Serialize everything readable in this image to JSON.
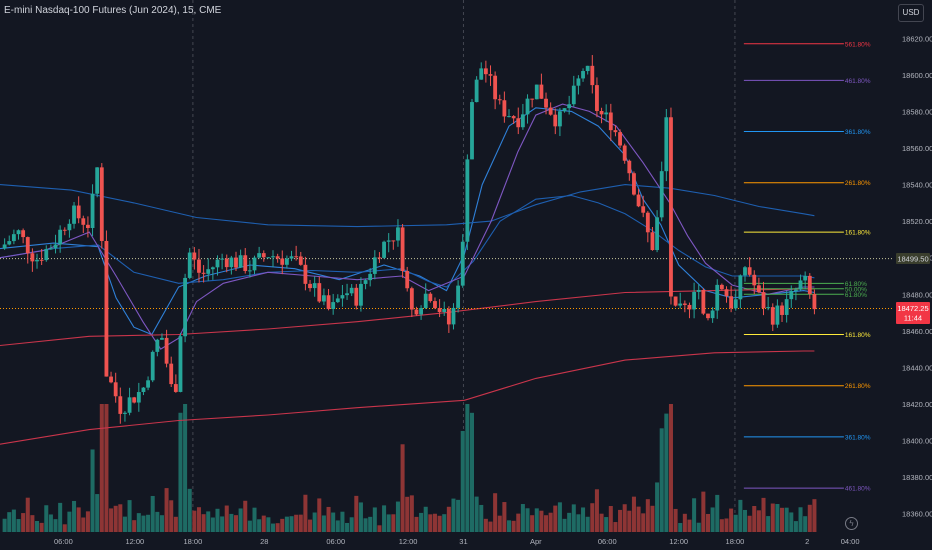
{
  "header": {
    "title": "E-mini Nasdaq-100 Futures (Jun 2024), 15, CME"
  },
  "toolbar": {
    "currency": "USD"
  },
  "badges": {
    "price": "18472.25",
    "countdown": "11:44",
    "level": "18499.50"
  },
  "icons": {
    "settings": "lightning-icon"
  },
  "colors": {
    "background": "#131722",
    "bull": "#26a69a",
    "bear": "#ef5350",
    "vol_bull": "#1e6b64",
    "vol_bear": "#8e3535",
    "ma_blue_light": "#2f80d8",
    "ma_blue_dark": "#1e5fb0",
    "ma_purple": "#7e57c2",
    "ma_red": "#c9354b",
    "fib_561": "#f23645",
    "fib_461": "#7e57c2",
    "fib_361": "#2196f3",
    "fib_261": "#ff9800",
    "fib_161": "#ffeb3b",
    "fib_618": "#4caf50",
    "level_line": "#c9c99d"
  },
  "chart_data": {
    "type": "candlestick",
    "title": "E-mini Nasdaq-100 Futures (Jun 2024), 15, CME",
    "y_range": [
      18350,
      18630
    ],
    "y_ticks": [
      18620,
      18600,
      18580,
      18560,
      18540,
      18520,
      18500,
      18480,
      18460,
      18440,
      18420,
      18400,
      18380,
      18360
    ],
    "x_ticks": [
      {
        "label": "06:00",
        "t": 0.071
      },
      {
        "label": "12:00",
        "t": 0.151
      },
      {
        "label": "18:00",
        "t": 0.216
      },
      {
        "label": "28",
        "t": 0.296
      },
      {
        "label": "06:00",
        "t": 0.376
      },
      {
        "label": "12:00",
        "t": 0.457
      },
      {
        "label": "31",
        "t": 0.519
      },
      {
        "label": "Apr",
        "t": 0.6
      },
      {
        "label": "06:00",
        "t": 0.68
      },
      {
        "label": "12:00",
        "t": 0.76
      },
      {
        "label": "18:00",
        "t": 0.823
      },
      {
        "label": "2",
        "t": 0.904
      },
      {
        "label": "04:00",
        "t": 0.952
      }
    ],
    "session_lines": [
      0.216,
      0.519,
      0.823
    ],
    "price_anchors": [
      [
        0.0,
        18505
      ],
      [
        0.02,
        18514
      ],
      [
        0.04,
        18499
      ],
      [
        0.06,
        18508
      ],
      [
        0.08,
        18525
      ],
      [
        0.1,
        18518
      ],
      [
        0.112,
        18560
      ],
      [
        0.117,
        18440
      ],
      [
        0.135,
        18418
      ],
      [
        0.16,
        18428
      ],
      [
        0.18,
        18460
      ],
      [
        0.195,
        18420
      ],
      [
        0.21,
        18505
      ],
      [
        0.225,
        18490
      ],
      [
        0.25,
        18500
      ],
      [
        0.28,
        18495
      ],
      [
        0.3,
        18502
      ],
      [
        0.33,
        18498
      ],
      [
        0.355,
        18480
      ],
      [
        0.37,
        18470
      ],
      [
        0.385,
        18482
      ],
      [
        0.4,
        18478
      ],
      [
        0.425,
        18505
      ],
      [
        0.445,
        18515
      ],
      [
        0.46,
        18470
      ],
      [
        0.48,
        18482
      ],
      [
        0.505,
        18462
      ],
      [
        0.52,
        18512
      ],
      [
        0.525,
        18580
      ],
      [
        0.54,
        18606
      ],
      [
        0.56,
        18582
      ],
      [
        0.58,
        18576
      ],
      [
        0.6,
        18594
      ],
      [
        0.625,
        18574
      ],
      [
        0.64,
        18586
      ],
      [
        0.655,
        18606
      ],
      [
        0.67,
        18579
      ],
      [
        0.685,
        18574
      ],
      [
        0.7,
        18556
      ],
      [
        0.715,
        18530
      ],
      [
        0.73,
        18505
      ],
      [
        0.74,
        18532
      ],
      [
        0.745,
        18598
      ],
      [
        0.752,
        18468
      ],
      [
        0.77,
        18472
      ],
      [
        0.78,
        18490
      ],
      [
        0.79,
        18460
      ],
      [
        0.805,
        18488
      ],
      [
        0.822,
        18472
      ],
      [
        0.835,
        18497
      ],
      [
        0.85,
        18478
      ],
      [
        0.865,
        18468
      ],
      [
        0.88,
        18474
      ],
      [
        0.9,
        18488
      ],
      [
        0.912,
        18472
      ]
    ],
    "moving_averages": [
      {
        "color": "ma_blue_light",
        "pts": [
          [
            0.0,
            18505
          ],
          [
            0.06,
            18508
          ],
          [
            0.11,
            18506
          ],
          [
            0.13,
            18478
          ],
          [
            0.15,
            18462
          ],
          [
            0.17,
            18458
          ],
          [
            0.2,
            18484
          ],
          [
            0.23,
            18490
          ],
          [
            0.28,
            18496
          ],
          [
            0.33,
            18494
          ],
          [
            0.38,
            18488
          ],
          [
            0.43,
            18496
          ],
          [
            0.47,
            18490
          ],
          [
            0.5,
            18482
          ],
          [
            0.52,
            18502
          ],
          [
            0.54,
            18540
          ],
          [
            0.57,
            18572
          ],
          [
            0.6,
            18582
          ],
          [
            0.64,
            18580
          ],
          [
            0.67,
            18572
          ],
          [
            0.7,
            18556
          ],
          [
            0.72,
            18532
          ],
          [
            0.74,
            18518
          ],
          [
            0.76,
            18496
          ],
          [
            0.79,
            18482
          ],
          [
            0.82,
            18478
          ],
          [
            0.86,
            18480
          ],
          [
            0.9,
            18482
          ],
          [
            0.912,
            18481
          ]
        ]
      },
      {
        "color": "ma_blue_dark",
        "pts": [
          [
            0.0,
            18500
          ],
          [
            0.06,
            18505
          ],
          [
            0.11,
            18507
          ],
          [
            0.15,
            18492
          ],
          [
            0.2,
            18486
          ],
          [
            0.25,
            18488
          ],
          [
            0.3,
            18492
          ],
          [
            0.35,
            18493
          ],
          [
            0.4,
            18492
          ],
          [
            0.45,
            18494
          ],
          [
            0.48,
            18487
          ],
          [
            0.5,
            18484
          ],
          [
            0.53,
            18498
          ],
          [
            0.56,
            18520
          ],
          [
            0.6,
            18532
          ],
          [
            0.64,
            18534
          ],
          [
            0.67,
            18530
          ],
          [
            0.7,
            18524
          ],
          [
            0.73,
            18515
          ],
          [
            0.76,
            18504
          ],
          [
            0.79,
            18495
          ],
          [
            0.82,
            18490
          ],
          [
            0.86,
            18490
          ],
          [
            0.9,
            18490
          ],
          [
            0.912,
            18489
          ]
        ]
      },
      {
        "color": "ma_blue_dark",
        "pts": [
          [
            0.0,
            18540
          ],
          [
            0.08,
            18537
          ],
          [
            0.15,
            18530
          ],
          [
            0.22,
            18522
          ],
          [
            0.3,
            18518
          ],
          [
            0.4,
            18517
          ],
          [
            0.5,
            18518
          ],
          [
            0.55,
            18520
          ],
          [
            0.6,
            18529
          ],
          [
            0.65,
            18536
          ],
          [
            0.7,
            18540
          ],
          [
            0.75,
            18538
          ],
          [
            0.8,
            18534
          ],
          [
            0.85,
            18528
          ],
          [
            0.9,
            18524
          ],
          [
            0.912,
            18523
          ]
        ]
      },
      {
        "color": "ma_purple",
        "pts": [
          [
            0.0,
            18500
          ],
          [
            0.05,
            18504
          ],
          [
            0.1,
            18514
          ],
          [
            0.13,
            18490
          ],
          [
            0.16,
            18465
          ],
          [
            0.18,
            18450
          ],
          [
            0.2,
            18456
          ],
          [
            0.22,
            18476
          ],
          [
            0.25,
            18486
          ],
          [
            0.3,
            18492
          ],
          [
            0.35,
            18490
          ],
          [
            0.4,
            18488
          ],
          [
            0.45,
            18490
          ],
          [
            0.48,
            18482
          ],
          [
            0.52,
            18490
          ],
          [
            0.55,
            18520
          ],
          [
            0.58,
            18558
          ],
          [
            0.6,
            18578
          ],
          [
            0.63,
            18584
          ],
          [
            0.66,
            18580
          ],
          [
            0.69,
            18572
          ],
          [
            0.72,
            18552
          ],
          [
            0.75,
            18530
          ],
          [
            0.77,
            18512
          ],
          [
            0.79,
            18497
          ],
          [
            0.82,
            18485
          ],
          [
            0.86,
            18480
          ],
          [
            0.9,
            18484
          ],
          [
            0.912,
            18484
          ]
        ]
      },
      {
        "color": "ma_red",
        "pts": [
          [
            0.0,
            18452
          ],
          [
            0.1,
            18457
          ],
          [
            0.2,
            18458
          ],
          [
            0.3,
            18461
          ],
          [
            0.4,
            18465
          ],
          [
            0.5,
            18470
          ],
          [
            0.6,
            18476
          ],
          [
            0.7,
            18481
          ],
          [
            0.8,
            18482
          ],
          [
            0.9,
            18483
          ],
          [
            0.912,
            18483
          ]
        ]
      },
      {
        "color": "ma_red",
        "pts": [
          [
            0.0,
            18398
          ],
          [
            0.1,
            18406
          ],
          [
            0.2,
            18411
          ],
          [
            0.3,
            18414
          ],
          [
            0.4,
            18418
          ],
          [
            0.52,
            18422
          ],
          [
            0.6,
            18434
          ],
          [
            0.7,
            18444
          ],
          [
            0.8,
            18448
          ],
          [
            0.9,
            18449
          ],
          [
            0.912,
            18449
          ]
        ]
      }
    ],
    "fib_levels": [
      {
        "label": "561.80%",
        "value": 18617,
        "color": "fib_561"
      },
      {
        "label": "461.80%",
        "value": 18597,
        "color": "fib_461"
      },
      {
        "label": "361.80%",
        "value": 18569,
        "color": "fib_361"
      },
      {
        "label": "261.80%",
        "value": 18541,
        "color": "fib_261"
      },
      {
        "label": "161.80%",
        "value": 18514,
        "color": "fib_161"
      },
      {
        "label": "61.80%",
        "value": 18486,
        "color": "fib_618"
      },
      {
        "label": "50.00%",
        "value": 18483,
        "color": "fib_618"
      },
      {
        "label": "61.80%",
        "value": 18480,
        "color": "fib_618"
      },
      {
        "label": "161.80%",
        "value": 18458,
        "color": "fib_161"
      },
      {
        "label": "261.80%",
        "value": 18430,
        "color": "fib_261"
      },
      {
        "label": "361.80%",
        "value": 18402,
        "color": "fib_361"
      },
      {
        "label": "461.80%",
        "value": 18374,
        "color": "fib_461"
      }
    ],
    "fib_start": 0.833,
    "dotted_levels": [
      {
        "value": 18499.5,
        "color": "level_line"
      },
      {
        "value": 18472.25,
        "color": "fib_261"
      }
    ],
    "volume_max_frac": 0.25
  }
}
